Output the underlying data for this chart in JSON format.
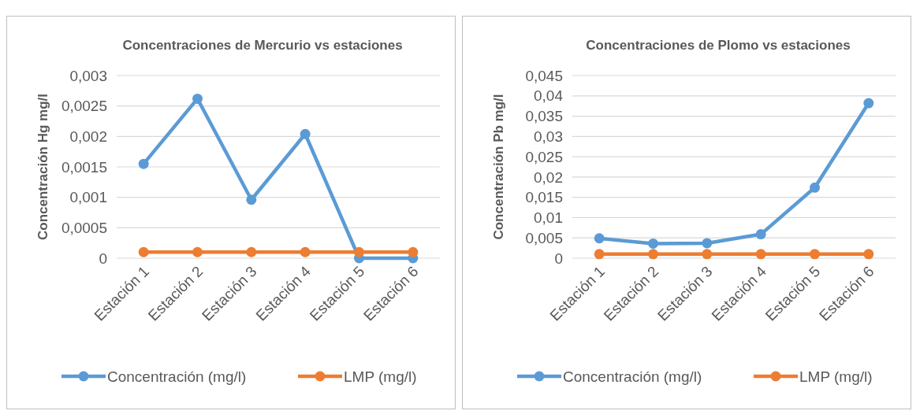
{
  "chart_data": [
    {
      "type": "line",
      "title": "Concentraciones de Mercurio vs estaciones",
      "ylabel": "Concentración Hg  mg/l",
      "categories": [
        "Estación 1",
        "Estación 2",
        "Estación 3",
        "Estación 4",
        "Estación 5",
        "Estación 6"
      ],
      "series": [
        {
          "name": "Concentración (mg/l)",
          "color": "#5b9bd5",
          "values": [
            0.00155,
            0.00262,
            0.00096,
            0.00204,
            0,
            0
          ]
        },
        {
          "name": "LMP (mg/l)",
          "color": "#ed7d31",
          "values": [
            0.0001,
            0.0001,
            0.0001,
            0.0001,
            0.0001,
            0.0001
          ]
        }
      ],
      "ylim": [
        0,
        0.003
      ],
      "yticks": [
        0,
        {
          "value": 0.0005,
          "label": "0,0005"
        },
        {
          "value": 0.001,
          "label": "0,001"
        },
        {
          "value": 0.0015,
          "label": "0,0015"
        },
        {
          "value": 0.002,
          "label": "0,002"
        },
        {
          "value": 0.0025,
          "label": "0,0025"
        },
        {
          "value": 0.003,
          "label": "0,003"
        }
      ],
      "grid": "y",
      "legend": "bottom",
      "marker": "circle",
      "line_style": "solid"
    },
    {
      "type": "line",
      "title": "Concentraciones de Plomo vs estaciones",
      "ylabel": "Concentración Pb  mg/l",
      "categories": [
        "Estación 1",
        "Estación 2",
        "Estación 3",
        "Estación 4",
        "Estación 5",
        "Estación 6"
      ],
      "series": [
        {
          "name": "Concentración (mg/l)",
          "color": "#5b9bd5",
          "values": [
            0.0049,
            0.0036,
            0.0037,
            0.0059,
            0.0174,
            0.0382
          ]
        },
        {
          "name": "LMP (mg/l)",
          "color": "#ed7d31",
          "values": [
            0.001,
            0.001,
            0.001,
            0.001,
            0.001,
            0.001
          ]
        }
      ],
      "ylim": [
        0,
        0.045
      ],
      "yticks": [
        0,
        {
          "value": 0.005,
          "label": "0,005"
        },
        {
          "value": 0.01,
          "label": "0,01"
        },
        {
          "value": 0.015,
          "label": "0,015"
        },
        {
          "value": 0.02,
          "label": "0,02"
        },
        {
          "value": 0.025,
          "label": "0,025"
        },
        {
          "value": 0.03,
          "label": "0,03"
        },
        {
          "value": 0.035,
          "label": "0,035"
        },
        {
          "value": 0.04,
          "label": "0,04"
        },
        {
          "value": 0.045,
          "label": "0,045"
        }
      ],
      "grid": "y",
      "legend": "bottom",
      "marker": "circle",
      "line_style": "solid"
    }
  ]
}
